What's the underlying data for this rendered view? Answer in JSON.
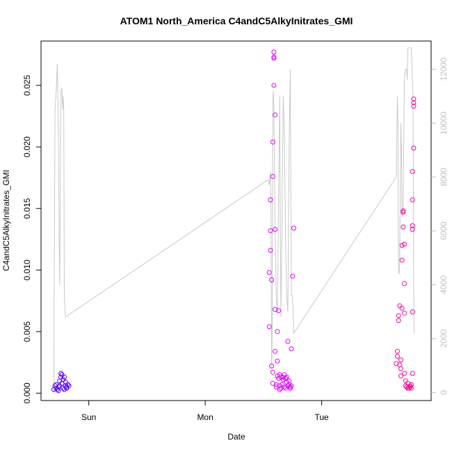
{
  "chart_data": {
    "type": "scatter",
    "title": "ATOM1 North_America C4andC5AlkyInitrates_GMI",
    "xlabel": "Date",
    "ylabel": "C4andC5AlkyInitrates_GMI",
    "x_ticks": [
      {
        "label": "Sun",
        "day": 1.0
      },
      {
        "label": "Mon",
        "day": 2.0
      },
      {
        "label": "Tue",
        "day": 3.0
      }
    ],
    "xlim_days": [
      0.59,
      3.94
    ],
    "ylim": [
      -0.0006,
      0.0286
    ],
    "y_ticks": [
      0.0,
      0.005,
      0.01,
      0.015,
      0.02,
      0.025
    ],
    "y_tick_labels": [
      "0.000",
      "0.005",
      "0.010",
      "0.015",
      "0.020",
      "0.025"
    ],
    "y2lim": [
      -300,
      13050
    ],
    "y2_ticks": [
      0,
      2000,
      4000,
      6000,
      8000,
      10000,
      12000
    ],
    "y2_tick_labels": [
      "0",
      "2000",
      "4000",
      "6000",
      "8000",
      "10000",
      "12000"
    ],
    "colors": {
      "early": "#5500ff",
      "mid": "#dd00ff",
      "late": "#ff0099",
      "altitude_line": "#c8c8c8"
    },
    "series": [
      {
        "color_group": "early",
        "points": [
          [
            0.7,
            0.0003
          ],
          [
            0.71,
            0.0006
          ],
          [
            0.72,
            0.0004
          ],
          [
            0.72,
            0.0007
          ],
          [
            0.73,
            0.0003
          ],
          [
            0.74,
            0.0005
          ],
          [
            0.74,
            0.0002
          ],
          [
            0.75,
            0.0006
          ],
          [
            0.75,
            0.001
          ],
          [
            0.76,
            0.0016
          ],
          [
            0.76,
            0.0013
          ],
          [
            0.77,
            0.0015
          ],
          [
            0.77,
            0.0008
          ],
          [
            0.78,
            0.0011
          ],
          [
            0.78,
            0.0004
          ],
          [
            0.79,
            0.0013
          ],
          [
            0.79,
            0.0003
          ],
          [
            0.8,
            0.0006
          ],
          [
            0.8,
            0.0009
          ],
          [
            0.81,
            0.0005
          ],
          [
            0.81,
            0.0004
          ],
          [
            0.82,
            0.0007
          ],
          [
            0.83,
            0.0006
          ]
        ]
      },
      {
        "color_group": "mid",
        "points": [
          [
            2.55,
            0.0054
          ],
          [
            2.55,
            0.0098
          ],
          [
            2.56,
            0.0116
          ],
          [
            2.56,
            0.0132
          ],
          [
            2.56,
            0.0157
          ],
          [
            2.57,
            0.0092
          ],
          [
            2.57,
            0.0022
          ],
          [
            2.58,
            0.0008
          ],
          [
            2.58,
            0.0017
          ],
          [
            2.58,
            0.0176
          ],
          [
            2.58,
            0.0204
          ],
          [
            2.59,
            0.025
          ],
          [
            2.59,
            0.0272
          ],
          [
            2.59,
            0.0273
          ],
          [
            2.59,
            0.0277
          ],
          [
            2.6,
            0.0226
          ],
          [
            2.6,
            0.0133
          ],
          [
            2.6,
            0.0068
          ],
          [
            2.6,
            0.0034
          ],
          [
            2.61,
            0.0007
          ],
          [
            2.61,
            0.0005
          ],
          [
            2.62,
            0.005
          ],
          [
            2.62,
            0.0026
          ],
          [
            2.62,
            0.0014
          ],
          [
            2.63,
            0.0067
          ],
          [
            2.63,
            0.0012
          ],
          [
            2.64,
            0.0015
          ],
          [
            2.64,
            0.0006
          ],
          [
            2.64,
            0.0003
          ],
          [
            2.65,
            0.0013
          ],
          [
            2.65,
            0.0004
          ],
          [
            2.66,
            0.0007
          ],
          [
            2.67,
            0.0013
          ],
          [
            2.67,
            0.0011
          ],
          [
            2.68,
            0.0015
          ],
          [
            2.68,
            0.0005
          ],
          [
            2.69,
            0.0012
          ],
          [
            2.69,
            0.0004
          ],
          [
            2.7,
            0.0009
          ],
          [
            2.7,
            0.0013
          ],
          [
            2.71,
            0.0006
          ],
          [
            2.71,
            0.0042
          ],
          [
            2.72,
            0.001
          ],
          [
            2.72,
            0.0007
          ],
          [
            2.73,
            0.0005
          ],
          [
            2.73,
            0.0004
          ],
          [
            2.74,
            0.0036
          ],
          [
            2.74,
            0.0006
          ],
          [
            2.75,
            0.0095
          ],
          [
            2.76,
            0.0134
          ]
        ]
      },
      {
        "color_group": "late",
        "points": [
          [
            3.64,
            0.0024
          ],
          [
            3.65,
            0.0034
          ],
          [
            3.65,
            0.003
          ],
          [
            3.66,
            0.0059
          ],
          [
            3.66,
            0.0063
          ],
          [
            3.67,
            0.0071
          ],
          [
            3.67,
            0.0023
          ],
          [
            3.68,
            0.002
          ],
          [
            3.68,
            0.0014
          ],
          [
            3.68,
            0.0027
          ],
          [
            3.69,
            0.0069
          ],
          [
            3.69,
            0.0108
          ],
          [
            3.69,
            0.012
          ],
          [
            3.7,
            0.0147
          ],
          [
            3.7,
            0.0148
          ],
          [
            3.7,
            0.0135
          ],
          [
            3.71,
            0.0121
          ],
          [
            3.71,
            0.0089
          ],
          [
            3.71,
            0.0065
          ],
          [
            3.71,
            0.0016
          ],
          [
            3.72,
            0.001
          ],
          [
            3.72,
            0.0006
          ],
          [
            3.73,
            0.0005
          ],
          [
            3.74,
            0.0004
          ],
          [
            3.74,
            0.0008
          ],
          [
            3.75,
            0.0004
          ],
          [
            3.76,
            0.0006
          ],
          [
            3.76,
            0.0005
          ],
          [
            3.77,
            0.0004
          ],
          [
            3.77,
            0.0007
          ],
          [
            3.78,
            0.0016
          ],
          [
            3.78,
            0.0066
          ],
          [
            3.78,
            0.0133
          ],
          [
            3.78,
            0.0136
          ],
          [
            3.78,
            0.0157
          ],
          [
            3.78,
            0.018
          ],
          [
            3.79,
            0.0199
          ],
          [
            3.79,
            0.0236
          ],
          [
            3.79,
            0.0239
          ],
          [
            3.79,
            0.0233
          ]
        ]
      }
    ],
    "altitude_line": [
      [
        0.7,
        0
      ],
      [
        0.71,
        10500
      ],
      [
        0.72,
        11200
      ],
      [
        0.73,
        12200
      ],
      [
        0.74,
        9800
      ],
      [
        0.745,
        5900
      ],
      [
        0.75,
        4000
      ],
      [
        0.755,
        6800
      ],
      [
        0.76,
        11200
      ],
      [
        0.77,
        11300
      ],
      [
        0.775,
        10500
      ],
      [
        0.78,
        11000
      ],
      [
        0.785,
        10500
      ],
      [
        0.79,
        3500
      ],
      [
        0.8,
        2800
      ],
      [
        2.54,
        7900
      ],
      [
        2.55,
        7700
      ],
      [
        2.56,
        8200
      ],
      [
        2.565,
        6500
      ],
      [
        2.57,
        900
      ],
      [
        2.575,
        2100
      ],
      [
        2.58,
        10800
      ],
      [
        2.585,
        11200
      ],
      [
        2.59,
        10500
      ],
      [
        2.6,
        6000
      ],
      [
        2.61,
        3500
      ],
      [
        2.62,
        3000
      ],
      [
        2.63,
        7000
      ],
      [
        2.64,
        11000
      ],
      [
        2.645,
        6000
      ],
      [
        2.65,
        2800
      ],
      [
        2.66,
        6500
      ],
      [
        2.67,
        11000
      ],
      [
        2.68,
        9500
      ],
      [
        2.69,
        5500
      ],
      [
        2.7,
        3600
      ],
      [
        2.71,
        3000
      ],
      [
        2.72,
        9000
      ],
      [
        2.73,
        12000
      ],
      [
        2.74,
        3600
      ],
      [
        2.75,
        3600
      ],
      [
        2.76,
        2200
      ],
      [
        3.64,
        8000
      ],
      [
        3.65,
        11000
      ],
      [
        3.655,
        10000
      ],
      [
        3.66,
        4500
      ],
      [
        3.665,
        4400
      ],
      [
        3.67,
        5000
      ],
      [
        3.68,
        10000
      ],
      [
        3.685,
        9000
      ],
      [
        3.69,
        6500
      ],
      [
        3.7,
        7000
      ],
      [
        3.71,
        11600
      ],
      [
        3.72,
        12000
      ],
      [
        3.73,
        12000
      ],
      [
        3.735,
        11600
      ],
      [
        3.74,
        12800
      ],
      [
        3.77,
        12800
      ],
      [
        3.78,
        11500
      ],
      [
        3.785,
        11000
      ],
      [
        3.79,
        4000
      ],
      [
        3.795,
        2200
      ]
    ]
  }
}
